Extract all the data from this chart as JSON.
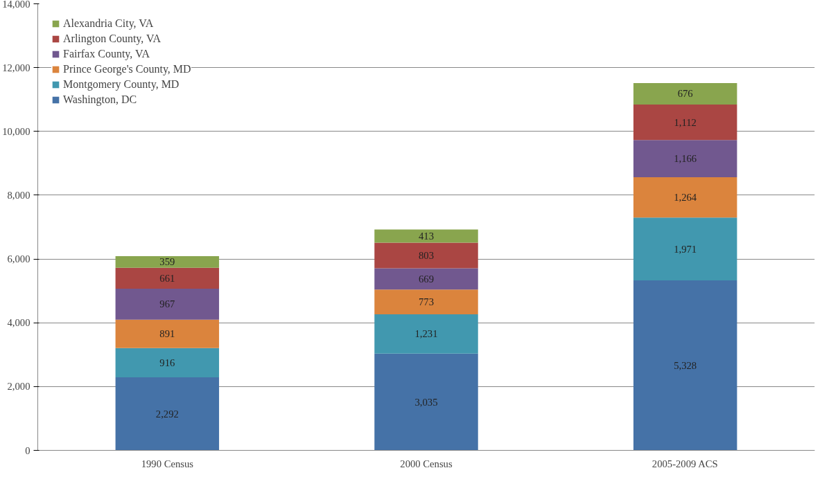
{
  "chart_data": {
    "type": "bar",
    "stacked": true,
    "categories": [
      "1990 Census",
      "2000 Census",
      "2005-2009 ACS"
    ],
    "series": [
      {
        "name": "Washington, DC",
        "color": "#4572a7",
        "values": [
          2292,
          3035,
          5328
        ],
        "value_labels": [
          "2,292",
          "3,035",
          "5,328"
        ]
      },
      {
        "name": "Montgomery County, MD",
        "color": "#4198af",
        "values": [
          916,
          1231,
          1971
        ],
        "value_labels": [
          "916",
          "1,231",
          "1,971"
        ]
      },
      {
        "name": "Prince George's County, MD",
        "color": "#db843d",
        "values": [
          891,
          773,
          1264
        ],
        "value_labels": [
          "891",
          "773",
          "1,264"
        ]
      },
      {
        "name": "Fairfax County, VA",
        "color": "#71588f",
        "values": [
          967,
          669,
          1166
        ],
        "value_labels": [
          "967",
          "669",
          "1,166"
        ]
      },
      {
        "name": "Arlington County, VA",
        "color": "#aa4643",
        "values": [
          661,
          803,
          1112
        ],
        "value_labels": [
          "661",
          "803",
          "1,112"
        ]
      },
      {
        "name": "Alexandria City, VA",
        "color": "#89a54e",
        "values": [
          359,
          413,
          676
        ],
        "value_labels": [
          "359",
          "413",
          "676"
        ]
      }
    ],
    "ylim": [
      0,
      14000
    ],
    "yticks": [
      {
        "value": 0,
        "label": "0"
      },
      {
        "value": 2000,
        "label": "2,000"
      },
      {
        "value": 4000,
        "label": "4,000"
      },
      {
        "value": 6000,
        "label": "6,000"
      },
      {
        "value": 8000,
        "label": "8,000"
      },
      {
        "value": 10000,
        "label": "10,000"
      },
      {
        "value": 12000,
        "label": "12,000"
      },
      {
        "value": 14000,
        "label": "14,000"
      }
    ],
    "grid": "y",
    "legend": "top left"
  }
}
